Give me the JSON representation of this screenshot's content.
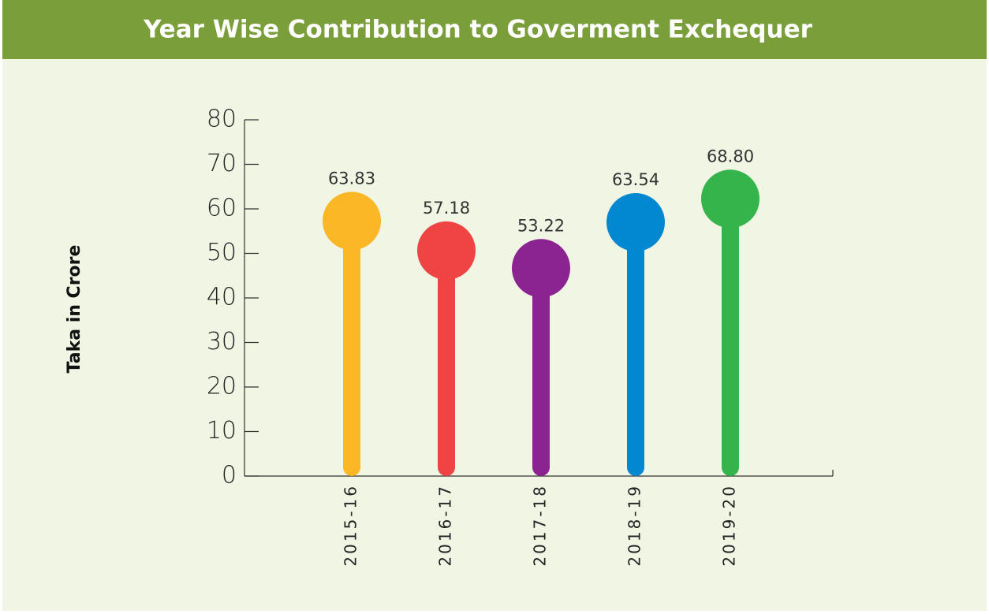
{
  "chart_data": {
    "type": "lollipop",
    "title": "Year Wise Contribution to Goverment Exchequer",
    "y_label": "Taka in Crore",
    "categories": [
      "2015-16",
      "2016-17",
      "2017-18",
      "2018-19",
      "2019-20"
    ],
    "values": [
      63.83,
      57.18,
      53.22,
      63.54,
      68.8
    ],
    "value_labels": [
      "63.83",
      "57.18",
      "53.22",
      "63.54",
      "68.80"
    ],
    "colors": [
      "#fbb726",
      "#ef4444",
      "#8b2490",
      "#0288d1",
      "#34b44a"
    ],
    "ylim": [
      0,
      80
    ],
    "yticks": [
      0,
      10,
      20,
      30,
      40,
      50,
      60,
      70,
      80
    ]
  }
}
